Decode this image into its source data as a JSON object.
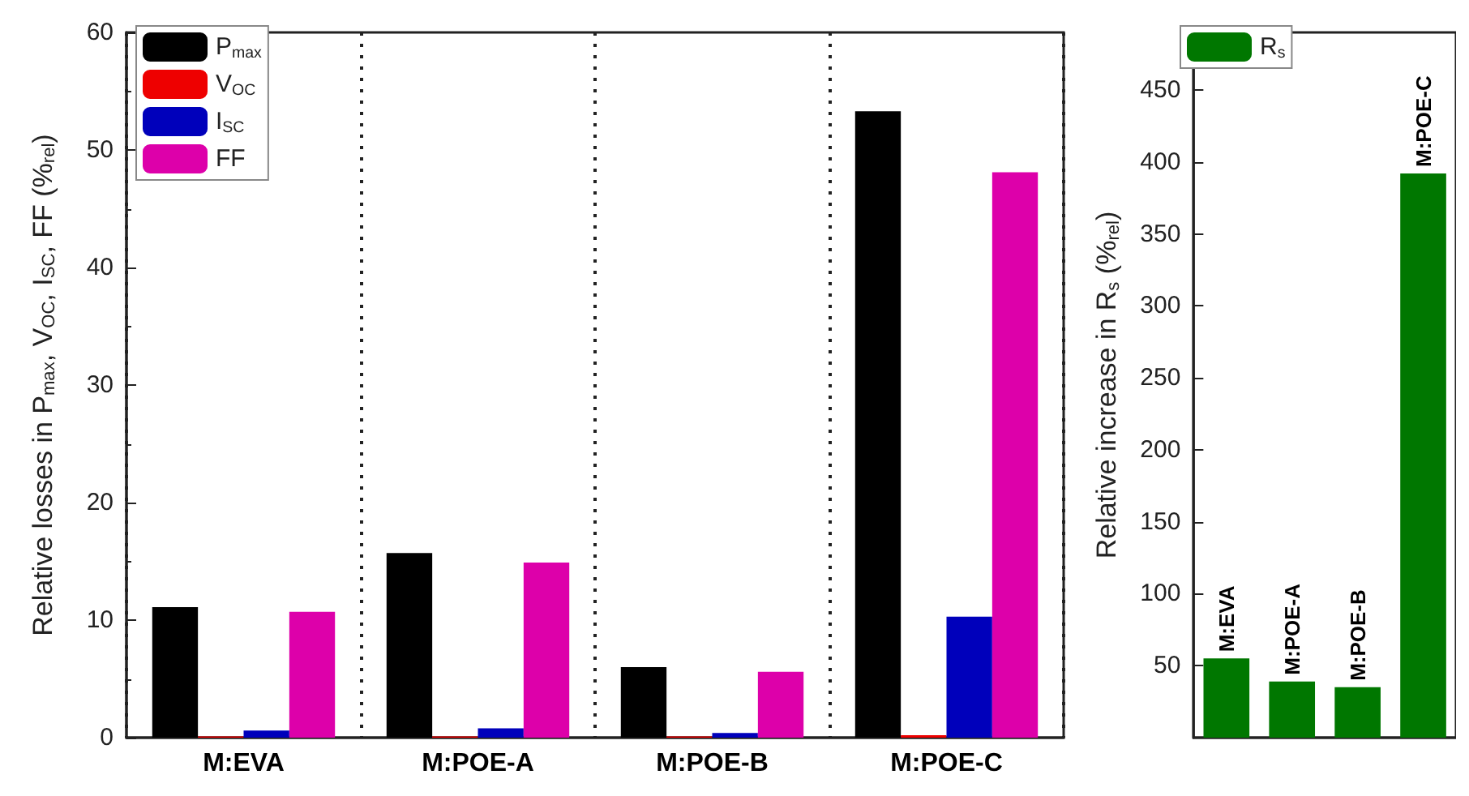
{
  "chart_data": [
    {
      "type": "bar",
      "ylabel": "Relative losses in P$_{max}$, V$_{OC}$, I$_{SC}$, FF (%$_{rel}$)",
      "categories": [
        "M:EVA",
        "M:POE-A",
        "M:POE-B",
        "M:POE-C"
      ],
      "series": [
        {
          "name": "P$_{max}$",
          "color": "#000000",
          "values": [
            11.1,
            15.7,
            6.0,
            53.3
          ]
        },
        {
          "name": "V$_{OC}$",
          "color": "#ee0000",
          "values": [
            0.1,
            0.1,
            0.1,
            0.2
          ]
        },
        {
          "name": "I$_{SC}$",
          "color": "#0000bb",
          "values": [
            0.6,
            0.8,
            0.4,
            10.3
          ]
        },
        {
          "name": "FF",
          "color": "#dd00aa",
          "values": [
            10.7,
            14.9,
            5.6,
            48.1
          ]
        }
      ],
      "ylim": [
        0,
        60
      ],
      "yticks": [
        0,
        10,
        20,
        30,
        40,
        50,
        60
      ],
      "grid": "x",
      "line_style": "dotted",
      "legend": "top left"
    },
    {
      "type": "bar",
      "ylabel": "Relative increase in R$_{s}$ (%$_{rel}$)",
      "categories": [
        "M:EVA",
        "M:POE-A",
        "M:POE-B",
        "M:POE-C"
      ],
      "series": [
        {
          "name": "R$_{s}$",
          "color": "#007700",
          "values": [
            55,
            39,
            35,
            392
          ]
        }
      ],
      "ylim": [
        0,
        490
      ],
      "yticks": [
        50,
        100,
        150,
        200,
        250,
        300,
        350,
        400,
        450
      ],
      "tick_labels": "y",
      "grid": false,
      "legend": "top left"
    }
  ]
}
